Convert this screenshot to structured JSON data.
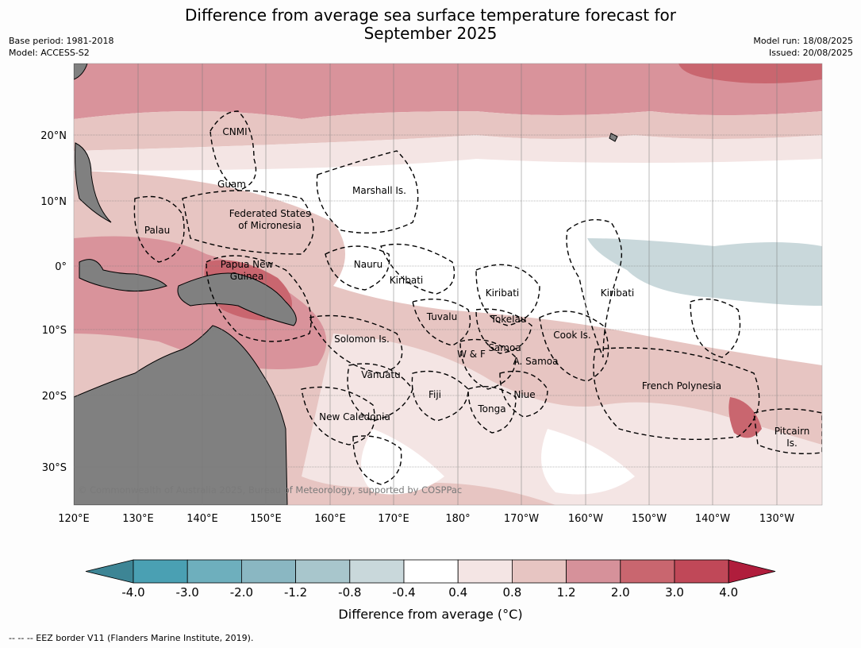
{
  "title_line1": "Difference from average sea surface temperature forecast for",
  "title_line2": "September 2025",
  "meta_left": {
    "base_period": "Base period: 1981-2018",
    "model": "Model: ACCESS-S2"
  },
  "meta_right": {
    "model_run": "Model run: 18/08/2025",
    "issued": "Issued: 20/08/2025"
  },
  "lon_ticks": [
    "120°E",
    "130°E",
    "140°E",
    "150°E",
    "160°E",
    "170°E",
    "180°",
    "170°W",
    "160°W",
    "150°W",
    "140°W",
    "130°W"
  ],
  "lat_ticks": [
    "20°N",
    "10°N",
    "0°",
    "10°S",
    "20°S",
    "30°S"
  ],
  "region_labels": [
    "CNMI",
    "Guam",
    "Marshall Is.",
    "Federated States",
    "of Micronesia",
    "Palau",
    "Papua New",
    "Guinea",
    "Nauru",
    "Kiribati",
    "Kiribati",
    "Kiribati",
    "Tuvalu",
    "Tokelau",
    "Solomon Is.",
    "W & F",
    "Samoa",
    "A. Samoa",
    "Cook Is.",
    "Vanuatu",
    "Fiji",
    "Niue",
    "Tonga",
    "French Polynesia",
    "New Caledonia",
    "Pitcairn",
    "Is."
  ],
  "copyright": "© Commonwealth of Australia 2025, Bureau of Meteorology, supported by COSPPac",
  "colorbar": {
    "labels": [
      "-4.0",
      "-3.0",
      "-2.0",
      "-1.2",
      "-0.8",
      "-0.4",
      "0.4",
      "0.8",
      "1.2",
      "2.0",
      "3.0",
      "4.0"
    ],
    "colors": [
      "#3d8595",
      "#4aa0b3",
      "#6eafbd",
      "#8ab7c2",
      "#a8c6cc",
      "#c9d8db",
      "#ffffff",
      "#f4e5e4",
      "#e7c5c2",
      "#d6919a",
      "#c9666f",
      "#c04858",
      "#b01d3c"
    ],
    "label": "Difference from average (°C)"
  },
  "legend_footer": "--  --  -- EEZ border V11 (Flanders Marine Institute, 2019)."
}
